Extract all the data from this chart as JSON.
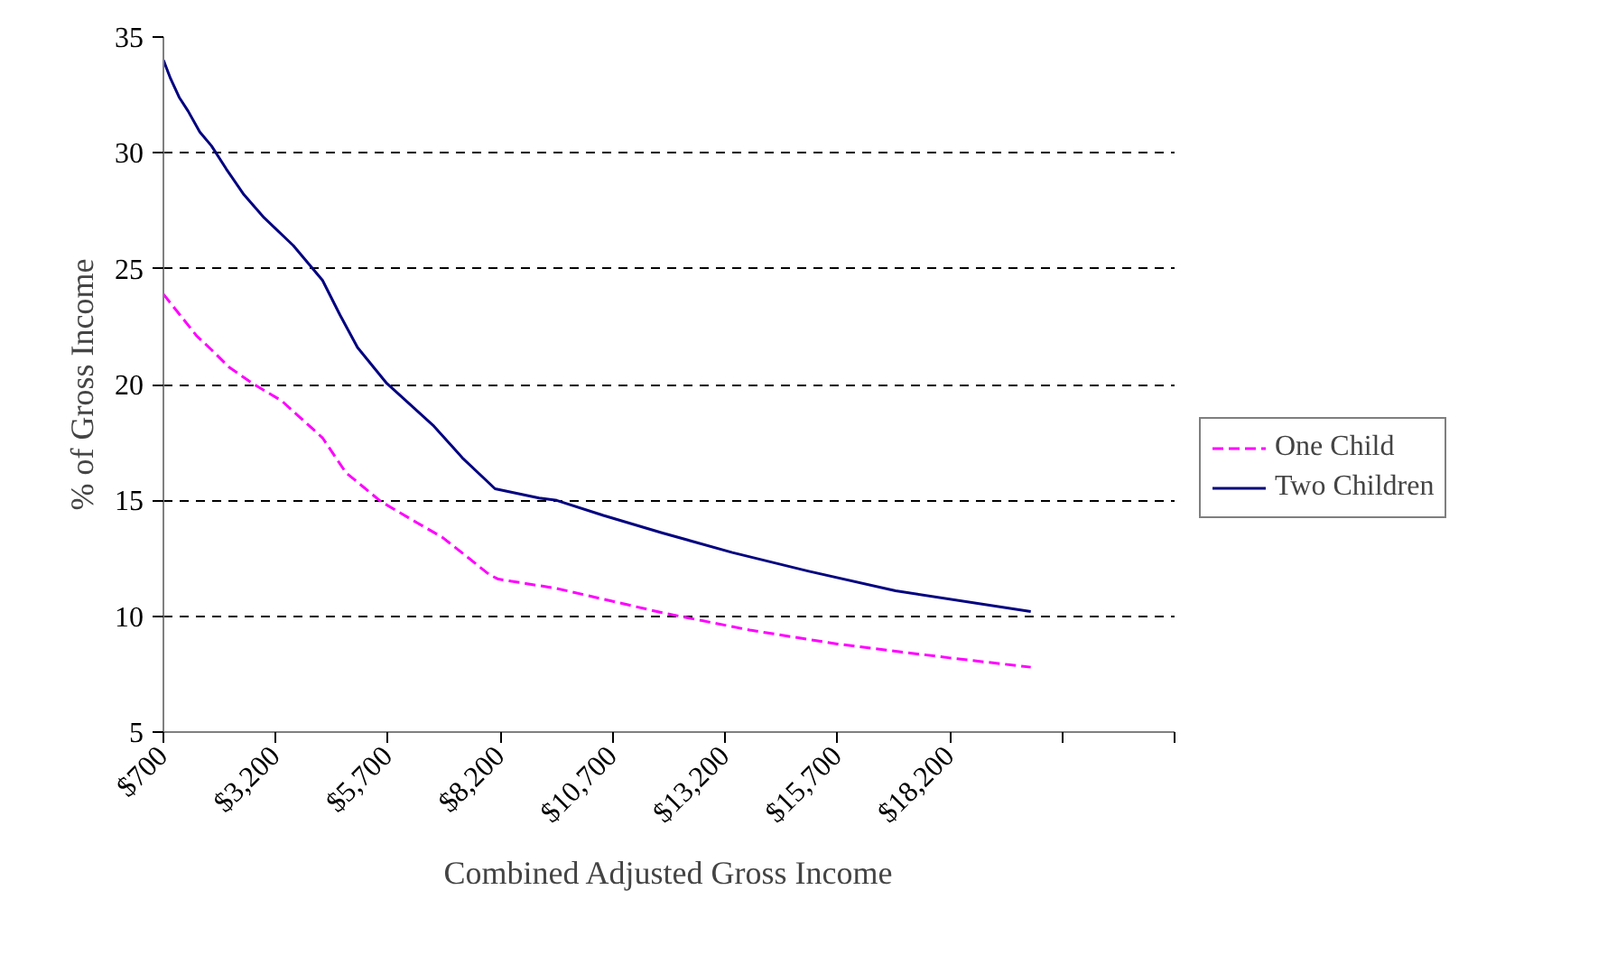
{
  "chart_data": {
    "type": "line",
    "xlabel": "Combined Adjusted Gross Income",
    "ylabel": "% of Gross Income",
    "xlim": [
      700,
      23200
    ],
    "xticks": [
      {
        "value": 700,
        "label": "$700"
      },
      {
        "value": 3200,
        "label": "$3,200"
      },
      {
        "value": 5700,
        "label": "$5,700"
      },
      {
        "value": 8200,
        "label": "$8,200"
      },
      {
        "value": 10700,
        "label": "$10,700"
      },
      {
        "value": 13200,
        "label": "$13,200"
      },
      {
        "value": 15700,
        "label": "$15,700"
      },
      {
        "value": 18200,
        "label": "$18,200"
      },
      {
        "value": 20700,
        "label": null
      },
      {
        "value": 23200,
        "label": null
      }
    ],
    "ylim": [
      5,
      35
    ],
    "yticks": [
      5,
      10,
      15,
      20,
      25,
      30,
      35
    ],
    "grid": "y",
    "legend": "right",
    "series": [
      {
        "name": "One Child",
        "color": "#ff00ff",
        "line_style": "dashed",
        "x": [
          700,
          1050,
          1440,
          1770,
          2160,
          2680,
          3330,
          4240,
          4760,
          5540,
          6330,
          6910,
          7500,
          7950,
          8150,
          9450,
          11800,
          13750,
          15700,
          18200,
          20000
        ],
        "values": [
          23.9,
          23.05,
          22.1,
          21.5,
          20.75,
          20.05,
          19.3,
          17.7,
          16.2,
          14.95,
          14.05,
          13.4,
          12.5,
          11.8,
          11.6,
          11.2,
          10.15,
          9.4,
          8.8,
          8.2,
          7.8
        ]
      },
      {
        "name": "Two Children",
        "color": "#000080",
        "line_style": "solid",
        "x": [
          700,
          860,
          1050,
          1250,
          1510,
          1770,
          2100,
          2490,
          2940,
          3590,
          4240,
          4630,
          5020,
          5670,
          6720,
          7370,
          8080,
          9060,
          9450,
          10490,
          11790,
          13360,
          15040,
          16990,
          20000
        ],
        "values": [
          34.0,
          33.2,
          32.4,
          31.8,
          30.9,
          30.3,
          29.3,
          28.2,
          27.2,
          26.0,
          24.5,
          23.0,
          21.6,
          20.05,
          18.2,
          16.8,
          15.5,
          15.1,
          15.0,
          14.35,
          13.6,
          12.75,
          11.95,
          11.1,
          10.2
        ]
      }
    ]
  }
}
